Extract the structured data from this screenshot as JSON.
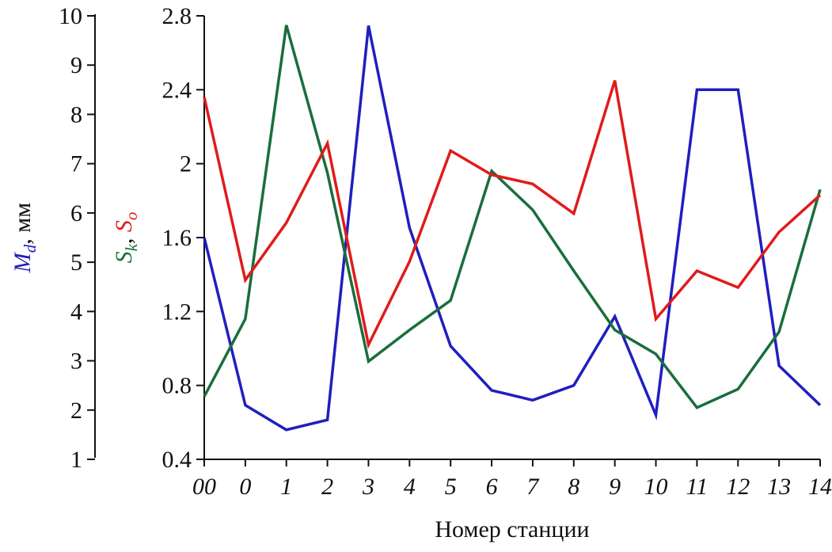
{
  "chart_data": {
    "type": "line",
    "xlabel": "Номер станции",
    "categories": [
      "00",
      "0",
      "1",
      "2",
      "3",
      "4",
      "5",
      "6",
      "7",
      "8",
      "9",
      "10",
      "11",
      "12",
      "13",
      "14"
    ],
    "left_axis": {
      "label_main": "M",
      "label_sub": "d",
      "label_unit": ", мм",
      "ylim": [
        1,
        10
      ],
      "ticks": [
        "1",
        "2",
        "3",
        "4",
        "5",
        "6",
        "7",
        "8",
        "9",
        "10"
      ],
      "color": "#1f1fbf"
    },
    "right_axis": {
      "label_s1": "S",
      "label_s1_sub": "k",
      "label_sep": ", ",
      "label_s2": "S",
      "label_s2_sub": "o",
      "ylim": [
        0.4,
        2.8
      ],
      "ticks": [
        "0.4",
        "0.8",
        "1.2",
        "1.6",
        "2",
        "2.4",
        "2.8"
      ],
      "color_s1": "#1a6e3c",
      "color_s2": "#e01b1b"
    },
    "series": [
      {
        "key": "Md",
        "axis": "left",
        "color": "#1f1fbf",
        "values": [
          5.5,
          2.1,
          1.6,
          1.8,
          9.8,
          5.7,
          3.3,
          2.4,
          2.2,
          2.5,
          3.9,
          1.9,
          8.5,
          8.5,
          2.9,
          2.1
        ]
      },
      {
        "key": "Sk",
        "axis": "right",
        "color": "#1a6e3c",
        "values": [
          0.74,
          1.16,
          2.75,
          1.95,
          0.93,
          1.1,
          1.26,
          1.96,
          1.75,
          1.42,
          1.1,
          0.97,
          0.68,
          0.78,
          1.09,
          1.86
        ]
      },
      {
        "key": "So",
        "axis": "right",
        "color": "#e01b1b",
        "values": [
          2.36,
          1.37,
          1.68,
          2.11,
          1.02,
          1.47,
          2.07,
          1.94,
          1.89,
          1.73,
          2.45,
          1.16,
          1.42,
          1.33,
          1.63,
          1.83
        ]
      }
    ],
    "grid": false
  }
}
